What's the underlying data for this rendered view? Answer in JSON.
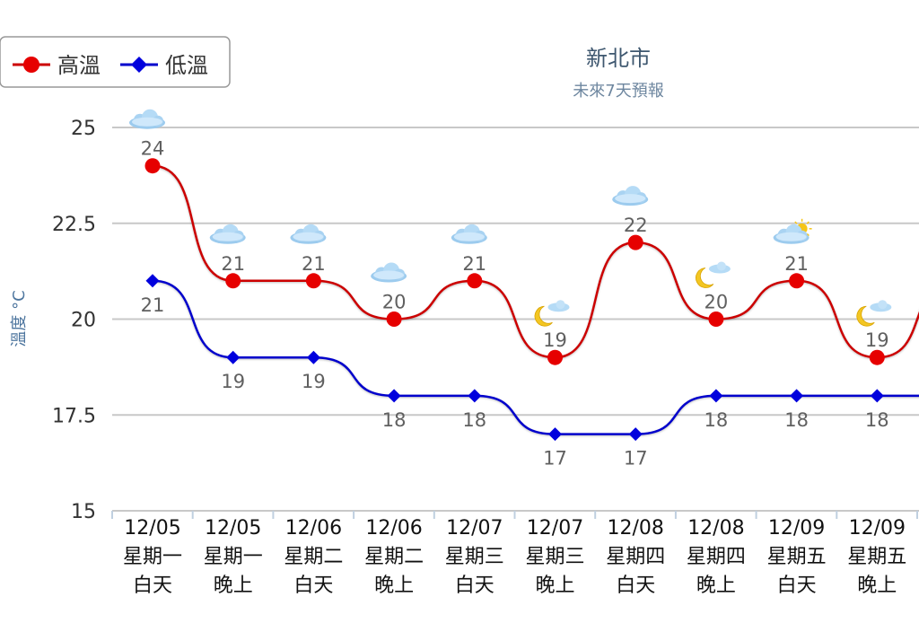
{
  "chart_data": {
    "type": "line",
    "title": "新北市",
    "subtitle": "未來7天預報",
    "ylabel": "溫度 °C",
    "ylim": [
      15,
      25
    ],
    "yticks": [
      "15",
      "17.5",
      "20",
      "22.5",
      "25"
    ],
    "legend_position": "top-left",
    "categories": [
      {
        "date": "12/05",
        "weekday": "星期一",
        "period": "白天"
      },
      {
        "date": "12/05",
        "weekday": "星期一",
        "period": "晚上"
      },
      {
        "date": "12/06",
        "weekday": "星期二",
        "period": "白天"
      },
      {
        "date": "12/06",
        "weekday": "星期二",
        "period": "晚上"
      },
      {
        "date": "12/07",
        "weekday": "星期三",
        "period": "白天"
      },
      {
        "date": "12/07",
        "weekday": "星期三",
        "period": "晚上"
      },
      {
        "date": "12/08",
        "weekday": "星期四",
        "period": "白天"
      },
      {
        "date": "12/08",
        "weekday": "星期四",
        "period": "晚上"
      },
      {
        "date": "12/09",
        "weekday": "星期五",
        "period": "白天"
      },
      {
        "date": "12/09",
        "weekday": "星期五",
        "period": "晚上"
      }
    ],
    "series": [
      {
        "name": "高溫",
        "color": "#cc0000",
        "marker_color": "#e60000",
        "marker": "circle",
        "values": [
          24,
          21,
          21,
          20,
          21,
          19,
          22,
          20,
          21,
          19
        ]
      },
      {
        "name": "低溫",
        "color": "#0000cc",
        "marker_color": "#0000dd",
        "marker": "diamond",
        "values": [
          21,
          19,
          19,
          18,
          18,
          17,
          17,
          18,
          18,
          18
        ]
      }
    ],
    "weather_icons": [
      "cloud-icon",
      "cloud-icon",
      "cloud-icon",
      "cloud-icon",
      "cloud-icon",
      "moon-cloud-icon",
      "cloud-icon",
      "moon-cloud-icon",
      "sun-cloud-icon",
      "moon-cloud-icon"
    ]
  }
}
